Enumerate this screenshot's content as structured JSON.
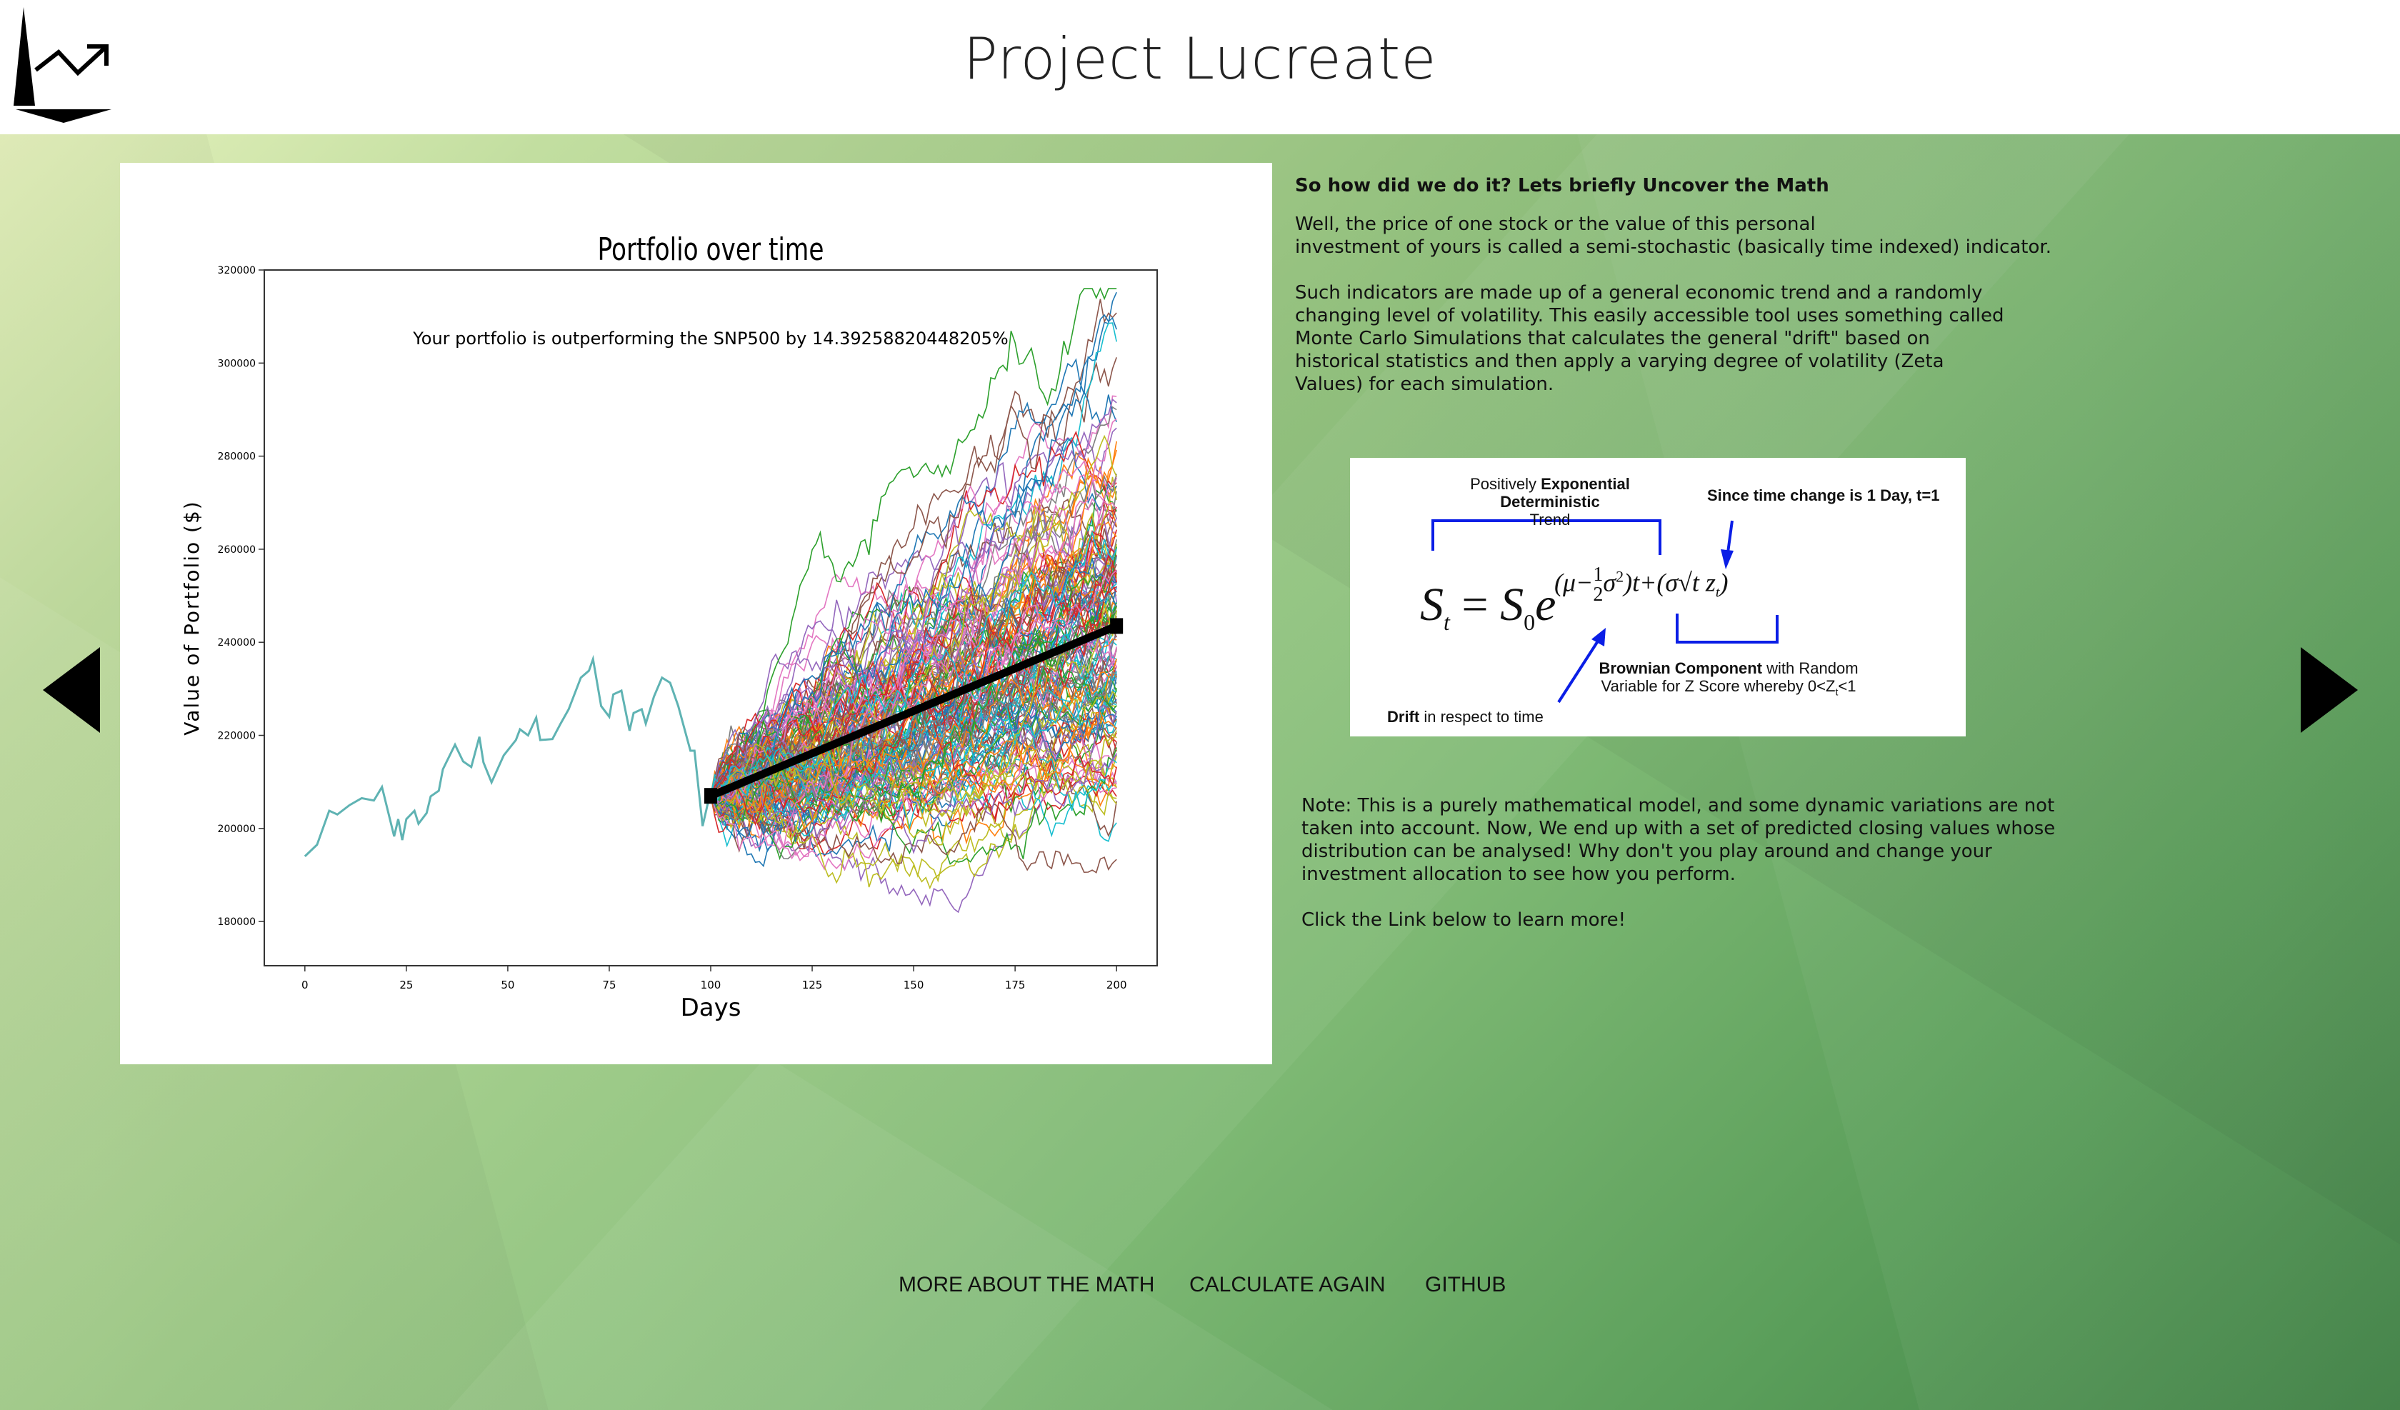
{
  "header": {
    "title": "Project Lucreate",
    "logo_icon": "chart-trend-logo-icon"
  },
  "navigation": {
    "prev_icon": "triangle-left-icon",
    "next_icon": "triangle-right-icon"
  },
  "chart_data": {
    "type": "line",
    "title": "Portfolio over time",
    "annotation": "Your portfolio is outperforming the SNP500 by 14.39258820448205%",
    "xlabel": "Days",
    "ylabel": "Value of Portfolio ($)",
    "xlim": [
      -10,
      210
    ],
    "ylim": [
      170500,
      320000
    ],
    "xticks": [
      0,
      25,
      50,
      75,
      100,
      125,
      150,
      175,
      200
    ],
    "yticks": [
      180000,
      200000,
      220000,
      240000,
      260000,
      280000,
      300000,
      320000
    ],
    "grid": false,
    "historical": {
      "color": "#5fb3b3",
      "points": [
        [
          0,
          194000
        ],
        [
          3,
          196500
        ],
        [
          6,
          203800
        ],
        [
          8,
          203000
        ],
        [
          11,
          205000
        ],
        [
          14,
          206500
        ],
        [
          17,
          206000
        ],
        [
          19,
          208900
        ],
        [
          22,
          198300
        ],
        [
          23,
          202000
        ],
        [
          24,
          197500
        ],
        [
          25,
          202000
        ],
        [
          27,
          203800
        ],
        [
          28,
          201000
        ],
        [
          30,
          203300
        ],
        [
          31,
          206900
        ],
        [
          33,
          208100
        ],
        [
          34,
          212700
        ],
        [
          37,
          218000
        ],
        [
          39,
          214400
        ],
        [
          41,
          213200
        ],
        [
          43,
          219700
        ],
        [
          44,
          214200
        ],
        [
          46,
          209900
        ],
        [
          49,
          215700
        ],
        [
          52,
          219000
        ],
        [
          53,
          221300
        ],
        [
          55,
          220000
        ],
        [
          57,
          223800
        ],
        [
          58,
          219000
        ],
        [
          61,
          219200
        ],
        [
          63,
          222500
        ],
        [
          65,
          225600
        ],
        [
          68,
          232400
        ],
        [
          70,
          233900
        ],
        [
          71,
          236400
        ],
        [
          73,
          226300
        ],
        [
          75,
          224000
        ],
        [
          76,
          228800
        ],
        [
          78,
          229600
        ],
        [
          80,
          221000
        ],
        [
          81,
          224800
        ],
        [
          83,
          225600
        ],
        [
          84,
          222500
        ],
        [
          86,
          228300
        ],
        [
          88,
          232400
        ],
        [
          90,
          231300
        ],
        [
          92,
          226300
        ],
        [
          95,
          216700
        ],
        [
          96,
          216700
        ],
        [
          98,
          200500
        ],
        [
          100,
          208100
        ]
      ]
    },
    "trend": {
      "color": "#000000",
      "points": [
        [
          100,
          207000
        ],
        [
          200,
          243500
        ]
      ]
    },
    "simulations": {
      "start": [
        100,
        207000
      ],
      "end_day": 200,
      "end_range": [
        190000,
        313000
      ],
      "colors": [
        "#1f77b4",
        "#ff7f0e",
        "#2ca02c",
        "#d62728",
        "#9467bd",
        "#8c564b",
        "#e377c2",
        "#7f7f7f",
        "#bcbd22",
        "#17becf"
      ]
    }
  },
  "content": {
    "heading": "So how did we do it? Lets briefly Uncover the Math",
    "para1_line1": "Well, the price of one stock or the value of this personal",
    "para1_line2": "investment of yours is called a semi-stochastic (basically time indexed) indicator.",
    "para2": "Such indicators are made up of a general economic trend and a randomly changing level of volatility. This easily accessible tool uses something called Monte Carlo Simulations that calculates the general \"drift\" based on historical statistics and then apply a varying degree of volatility (Zeta Values) for each simulation.",
    "note": "Note: This is a purely mathematical model, and some dynamic variations are not taken into account. Now, We end up with a set of predicted closing values whose distribution can be analysed! Why don't you play around and change your investment allocation to see how you perform.",
    "cta": "Click the Link below to learn more!"
  },
  "formula": {
    "trend_label_prefix": "Positively ",
    "trend_label_bold": "Exponential Deterministic",
    "trend_label_line2": "Trend",
    "time_label": "Since time change is 1 Day, t=1",
    "brownian_bold": "Brownian Component",
    "brownian_rest": " with Random",
    "brownian_line2": "Variable for Z Score whereby 0<Z",
    "brownian_sub": "t",
    "brownian_end": "<1",
    "drift_bold": "Drift",
    "drift_rest": " in respect to time",
    "bracket_color": "#0a1ee6"
  },
  "footer": {
    "links": [
      "MORE ABOUT THE MATH",
      "CALCULATE AGAIN",
      "GITHUB"
    ]
  }
}
